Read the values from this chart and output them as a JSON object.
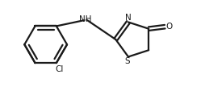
{
  "bg_color": "#ffffff",
  "line_color": "#1a1a1a",
  "line_width": 1.6,
  "figsize": [
    2.54,
    1.08
  ],
  "dpi": 100,
  "xlim": [
    0.0,
    10.0
  ],
  "ylim": [
    0.0,
    4.3
  ]
}
